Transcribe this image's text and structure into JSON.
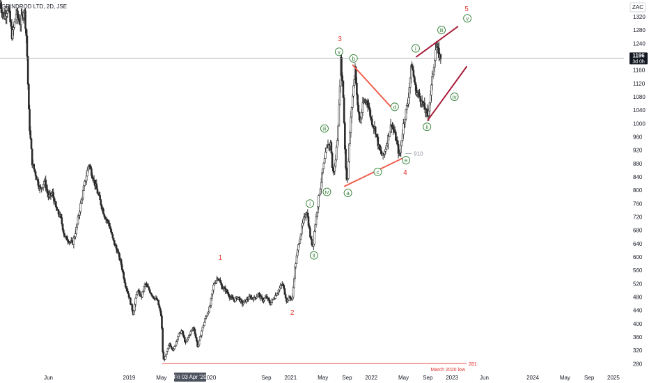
{
  "header": {
    "title": "GRINDROD LTD, 2D, JSE"
  },
  "price_axis": {
    "currency": "ZAC",
    "current_price_label": "1196",
    "countdown_label": "3d 0h"
  },
  "crosshair": {
    "date_label": "Fri 03 Apr '20"
  },
  "colors": {
    "candle": "#2a2a2a",
    "wave_red": "#e0302a",
    "wave_green": "#2e7d32",
    "triangle_line": "#f06050",
    "channel_line": "#a81d3a",
    "current_price_tag": "#131722",
    "low_line": "#e0302a"
  },
  "chart_data": {
    "type": "candlestick",
    "title": "GRINDROD LTD, 2D, JSE",
    "ylim": [
      260,
      1370
    ],
    "y_ticks": [
      280,
      320,
      360,
      400,
      440,
      480,
      520,
      560,
      600,
      640,
      680,
      720,
      760,
      800,
      840,
      880,
      920,
      960,
      1000,
      1040,
      1080,
      1120,
      1160,
      1200,
      1240,
      1280,
      1320
    ],
    "x_ticks": [
      {
        "label": "Jun",
        "t": 0.6
      },
      {
        "label": "2019",
        "t": 1.6
      },
      {
        "label": "May",
        "t": 2.0
      },
      {
        "label": "Sep",
        "t": 2.3
      },
      {
        "label": "2020",
        "t": 2.6
      },
      {
        "label": "Sep",
        "t": 3.3
      },
      {
        "label": "2021",
        "t": 3.6
      },
      {
        "label": "May",
        "t": 4.0
      },
      {
        "label": "Sep",
        "t": 4.3
      },
      {
        "label": "2022",
        "t": 4.6
      },
      {
        "label": "May",
        "t": 5.0
      },
      {
        "label": "Sep",
        "t": 5.3
      },
      {
        "label": "2023",
        "t": 5.6
      },
      {
        "label": "Jun",
        "t": 6.0
      },
      {
        "label": "2024",
        "t": 6.6
      },
      {
        "label": "May",
        "t": 7.0
      },
      {
        "label": "Sep",
        "t": 7.3
      },
      {
        "label": "2025",
        "t": 7.6
      }
    ],
    "price_path": [
      [
        0.0,
        1360
      ],
      [
        0.05,
        1320
      ],
      [
        0.1,
        1350
      ],
      [
        0.15,
        1260
      ],
      [
        0.2,
        1330
      ],
      [
        0.25,
        1300
      ],
      [
        0.3,
        1345
      ],
      [
        0.33,
        1250
      ],
      [
        0.36,
        1010
      ],
      [
        0.4,
        880
      ],
      [
        0.45,
        840
      ],
      [
        0.5,
        800
      ],
      [
        0.55,
        830
      ],
      [
        0.6,
        780
      ],
      [
        0.65,
        790
      ],
      [
        0.7,
        740
      ],
      [
        0.75,
        720
      ],
      [
        0.8,
        660
      ],
      [
        0.85,
        650
      ],
      [
        0.9,
        640
      ],
      [
        0.95,
        690
      ],
      [
        1.0,
        760
      ],
      [
        1.05,
        820
      ],
      [
        1.1,
        880
      ],
      [
        1.15,
        840
      ],
      [
        1.2,
        800
      ],
      [
        1.25,
        760
      ],
      [
        1.3,
        720
      ],
      [
        1.35,
        700
      ],
      [
        1.4,
        650
      ],
      [
        1.45,
        620
      ],
      [
        1.5,
        580
      ],
      [
        1.55,
        520
      ],
      [
        1.6,
        480
      ],
      [
        1.65,
        430
      ],
      [
        1.7,
        500
      ],
      [
        1.75,
        480
      ],
      [
        1.8,
        520
      ],
      [
        1.85,
        500
      ],
      [
        1.9,
        480
      ],
      [
        1.95,
        470
      ],
      [
        2.0,
        420
      ],
      [
        2.02,
        290
      ],
      [
        2.05,
        300
      ],
      [
        2.1,
        340
      ],
      [
        2.15,
        320
      ],
      [
        2.2,
        360
      ],
      [
        2.25,
        380
      ],
      [
        2.3,
        340
      ],
      [
        2.35,
        370
      ],
      [
        2.4,
        390
      ],
      [
        2.45,
        330
      ],
      [
        2.5,
        380
      ],
      [
        2.55,
        420
      ],
      [
        2.6,
        450
      ],
      [
        2.65,
        520
      ],
      [
        2.7,
        540
      ],
      [
        2.75,
        510
      ],
      [
        2.8,
        500
      ],
      [
        2.85,
        480
      ],
      [
        2.9,
        470
      ],
      [
        2.95,
        480
      ],
      [
        3.0,
        460
      ],
      [
        3.05,
        470
      ],
      [
        3.1,
        480
      ],
      [
        3.15,
        475
      ],
      [
        3.2,
        490
      ],
      [
        3.25,
        470
      ],
      [
        3.3,
        480
      ],
      [
        3.35,
        460
      ],
      [
        3.4,
        480
      ],
      [
        3.45,
        500
      ],
      [
        3.5,
        520
      ],
      [
        3.55,
        470
      ],
      [
        3.6,
        480
      ],
      [
        3.62,
        470
      ],
      [
        3.65,
        560
      ],
      [
        3.7,
        640
      ],
      [
        3.75,
        700
      ],
      [
        3.8,
        740
      ],
      [
        3.85,
        650
      ],
      [
        3.88,
        630
      ],
      [
        3.9,
        690
      ],
      [
        3.95,
        780
      ],
      [
        4.0,
        860
      ],
      [
        4.05,
        930
      ],
      [
        4.1,
        940
      ],
      [
        4.12,
        850
      ],
      [
        4.15,
        870
      ],
      [
        4.18,
        960
      ],
      [
        4.2,
        1050
      ],
      [
        4.22,
        1190
      ],
      [
        4.25,
        1100
      ],
      [
        4.28,
        880
      ],
      [
        4.3,
        820
      ],
      [
        4.33,
        950
      ],
      [
        4.36,
        1060
      ],
      [
        4.4,
        1170
      ],
      [
        4.43,
        1050
      ],
      [
        4.46,
        1000
      ],
      [
        4.5,
        1060
      ],
      [
        4.55,
        1070
      ],
      [
        4.6,
        1010
      ],
      [
        4.65,
        980
      ],
      [
        4.7,
        920
      ],
      [
        4.75,
        900
      ],
      [
        4.8,
        950
      ],
      [
        4.85,
        1000
      ],
      [
        4.9,
        960
      ],
      [
        4.95,
        900
      ],
      [
        5.0,
        1000
      ],
      [
        5.05,
        1060
      ],
      [
        5.1,
        1180
      ],
      [
        5.15,
        1100
      ],
      [
        5.2,
        1080
      ],
      [
        5.25,
        1050
      ],
      [
        5.3,
        1020
      ],
      [
        5.35,
        1120
      ],
      [
        5.4,
        1230
      ],
      [
        5.45,
        1200
      ],
      [
        5.47,
        1196
      ]
    ],
    "annotations": [
      {
        "label": "1",
        "style": "red",
        "t": 2.73,
        "price": 600
      },
      {
        "label": "2",
        "style": "red",
        "t": 3.62,
        "price": 435
      },
      {
        "label": "3",
        "style": "red",
        "t": 4.21,
        "price": 1255
      },
      {
        "label": "4",
        "style": "red",
        "t": 5.02,
        "price": 855
      },
      {
        "label": "5",
        "style": "red",
        "t": 5.78,
        "price": 1345
      },
      {
        "label": "i",
        "style": "green",
        "t": 3.84,
        "price": 760
      },
      {
        "label": "ii",
        "style": "green",
        "t": 3.89,
        "price": 605
      },
      {
        "label": "iii",
        "style": "green",
        "t": 4.02,
        "price": 985
      },
      {
        "label": "iv",
        "style": "green",
        "t": 4.05,
        "price": 795
      },
      {
        "label": "v",
        "style": "green",
        "t": 4.2,
        "price": 1215
      },
      {
        "label": "a",
        "style": "green",
        "t": 4.31,
        "price": 792
      },
      {
        "label": "b",
        "style": "green",
        "t": 4.38,
        "price": 1195
      },
      {
        "label": "c",
        "style": "green",
        "t": 4.68,
        "price": 855
      },
      {
        "label": "d",
        "style": "green",
        "t": 4.89,
        "price": 1050
      },
      {
        "label": "e",
        "style": "green",
        "t": 5.03,
        "price": 890
      },
      {
        "label": "i",
        "style": "green",
        "t": 5.15,
        "price": 1225
      },
      {
        "label": "ii",
        "style": "green",
        "t": 5.29,
        "price": 990
      },
      {
        "label": "iii",
        "style": "green",
        "t": 5.47,
        "price": 1280
      },
      {
        "label": "iv",
        "style": "green",
        "t": 5.63,
        "price": 1080
      },
      {
        "label": "v",
        "style": "green",
        "t": 5.79,
        "price": 1315
      }
    ],
    "lines": [
      {
        "name": "triangle-upper",
        "style": "triangle",
        "from": [
          4.37,
          1175
        ],
        "to": [
          4.88,
          1040
        ]
      },
      {
        "name": "triangle-lower",
        "style": "triangle",
        "from": [
          4.27,
          812
        ],
        "to": [
          4.98,
          895
        ]
      },
      {
        "name": "channel-upper",
        "style": "channel",
        "from": [
          5.16,
          1200
        ],
        "to": [
          5.67,
          1290
        ]
      },
      {
        "name": "channel-lower",
        "style": "channel",
        "from": [
          5.3,
          1010
        ],
        "to": [
          5.78,
          1170
        ]
      }
    ],
    "levels": [
      {
        "label": "910",
        "price": 910,
        "t_from": 5.02,
        "t_to": 5.1
      },
      {
        "label": "281",
        "price": 281,
        "t_from": 2.01,
        "t_to": 5.78,
        "note": "March 2020 low"
      }
    ],
    "current_price": 1196
  }
}
